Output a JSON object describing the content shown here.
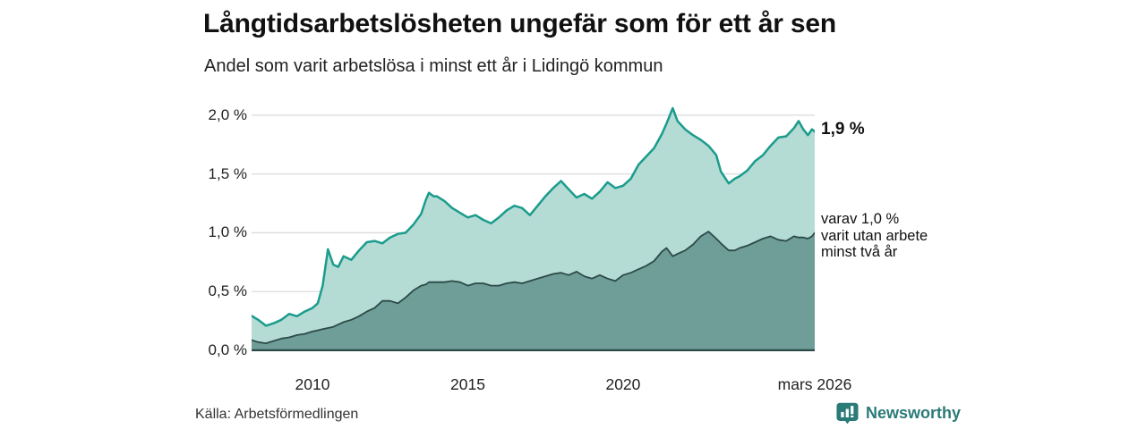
{
  "title": "Långtidsarbetslösheten ungefär som för ett år sen",
  "subtitle": "Andel som varit arbetslösa i minst ett år i Lidingö kommun",
  "source": "Källa: Arbetsförmedlingen",
  "logo": {
    "text": "Newsworthy",
    "icon": "bar-chart-speech-bubble-icon",
    "color": "#2a7a78"
  },
  "annotations": {
    "total_label": "1,9 %",
    "subset_label_lines": [
      "varav 1,0 %",
      "varit utan arbete",
      "minst två år"
    ]
  },
  "colors": {
    "grid": "#dcdcdc",
    "baseline": "#2b4a47",
    "total_line": "#1a9c8c",
    "total_fill": "#b5dbd5",
    "subset_line": "#2b4a47",
    "subset_fill": "#6f9e98"
  },
  "chart_data": {
    "type": "area",
    "title": "Långtidsarbetslösheten ungefär som för ett år sen",
    "subtitle": "Andel som varit arbetslösa i minst ett år i Lidingö kommun",
    "unit": "%",
    "grid": true,
    "x_axis": {
      "range": [
        2008.04,
        2026.17
      ],
      "ticks": [
        {
          "value": 2010,
          "label": "2010"
        },
        {
          "value": 2015,
          "label": "2015"
        },
        {
          "value": 2020,
          "label": "2020"
        },
        {
          "value": 2026.17,
          "label": "mars 2026"
        }
      ]
    },
    "y_axis": {
      "max": 2.075,
      "ticks": [
        {
          "value": 0.0,
          "label": "0,0 %"
        },
        {
          "value": 0.5,
          "label": "0,5 %"
        },
        {
          "value": 1.0,
          "label": "1,0 %"
        },
        {
          "value": 1.5,
          "label": "1,5 %"
        },
        {
          "value": 2.0,
          "label": "2,0 %"
        }
      ]
    },
    "x": [
      2008.0,
      2008.25,
      2008.5,
      2008.75,
      2009.0,
      2009.25,
      2009.5,
      2009.75,
      2010.0,
      2010.17,
      2010.33,
      2010.5,
      2010.67,
      2010.83,
      2011.0,
      2011.25,
      2011.5,
      2011.75,
      2012.0,
      2012.25,
      2012.5,
      2012.75,
      2013.0,
      2013.25,
      2013.5,
      2013.65,
      2013.75,
      2013.9,
      2014.0,
      2014.25,
      2014.5,
      2014.75,
      2015.0,
      2015.25,
      2015.5,
      2015.75,
      2016.0,
      2016.25,
      2016.5,
      2016.75,
      2017.0,
      2017.25,
      2017.5,
      2017.75,
      2018.0,
      2018.25,
      2018.5,
      2018.75,
      2019.0,
      2019.25,
      2019.5,
      2019.75,
      2020.0,
      2020.25,
      2020.5,
      2020.75,
      2021.0,
      2021.25,
      2021.4,
      2021.6,
      2021.75,
      2022.0,
      2022.25,
      2022.5,
      2022.75,
      2023.0,
      2023.15,
      2023.4,
      2023.6,
      2023.75,
      2024.0,
      2024.25,
      2024.5,
      2024.75,
      2025.0,
      2025.25,
      2025.5,
      2025.65,
      2025.8,
      2025.95,
      2026.08,
      2026.17
    ],
    "series": [
      {
        "name": "Andel arbetslösa minst ett år",
        "current_value": "1,9 %",
        "line_color": "#1a9c8c",
        "fill_color": "#b5dbd5",
        "line_width": 2.5,
        "y": [
          0.3,
          0.26,
          0.21,
          0.23,
          0.26,
          0.31,
          0.29,
          0.33,
          0.36,
          0.4,
          0.55,
          0.86,
          0.73,
          0.71,
          0.8,
          0.77,
          0.85,
          0.92,
          0.93,
          0.91,
          0.96,
          0.99,
          1.0,
          1.07,
          1.16,
          1.28,
          1.34,
          1.31,
          1.31,
          1.27,
          1.21,
          1.17,
          1.13,
          1.15,
          1.11,
          1.08,
          1.13,
          1.19,
          1.23,
          1.21,
          1.15,
          1.23,
          1.31,
          1.38,
          1.44,
          1.37,
          1.3,
          1.33,
          1.29,
          1.35,
          1.43,
          1.38,
          1.4,
          1.46,
          1.58,
          1.65,
          1.72,
          1.84,
          1.93,
          2.06,
          1.95,
          1.88,
          1.83,
          1.79,
          1.74,
          1.66,
          1.52,
          1.42,
          1.46,
          1.48,
          1.53,
          1.61,
          1.66,
          1.74,
          1.81,
          1.82,
          1.89,
          1.95,
          1.88,
          1.83,
          1.88,
          1.86
        ]
      },
      {
        "name": "Varav utan arbete minst två år",
        "current_value": "1,0 %",
        "line_color": "#2b4a47",
        "fill_color": "#6f9e98",
        "line_width": 1.8,
        "y": [
          0.09,
          0.07,
          0.06,
          0.08,
          0.1,
          0.11,
          0.13,
          0.14,
          0.16,
          0.17,
          0.18,
          0.19,
          0.2,
          0.22,
          0.24,
          0.26,
          0.29,
          0.33,
          0.36,
          0.42,
          0.42,
          0.4,
          0.45,
          0.51,
          0.55,
          0.56,
          0.58,
          0.58,
          0.58,
          0.58,
          0.59,
          0.58,
          0.55,
          0.57,
          0.57,
          0.55,
          0.55,
          0.57,
          0.58,
          0.57,
          0.59,
          0.61,
          0.63,
          0.65,
          0.66,
          0.64,
          0.67,
          0.63,
          0.61,
          0.64,
          0.61,
          0.59,
          0.64,
          0.66,
          0.69,
          0.72,
          0.76,
          0.84,
          0.87,
          0.8,
          0.82,
          0.85,
          0.9,
          0.97,
          1.01,
          0.95,
          0.91,
          0.85,
          0.85,
          0.87,
          0.89,
          0.92,
          0.95,
          0.97,
          0.94,
          0.93,
          0.97,
          0.96,
          0.96,
          0.95,
          0.97,
          1.0
        ]
      }
    ]
  }
}
